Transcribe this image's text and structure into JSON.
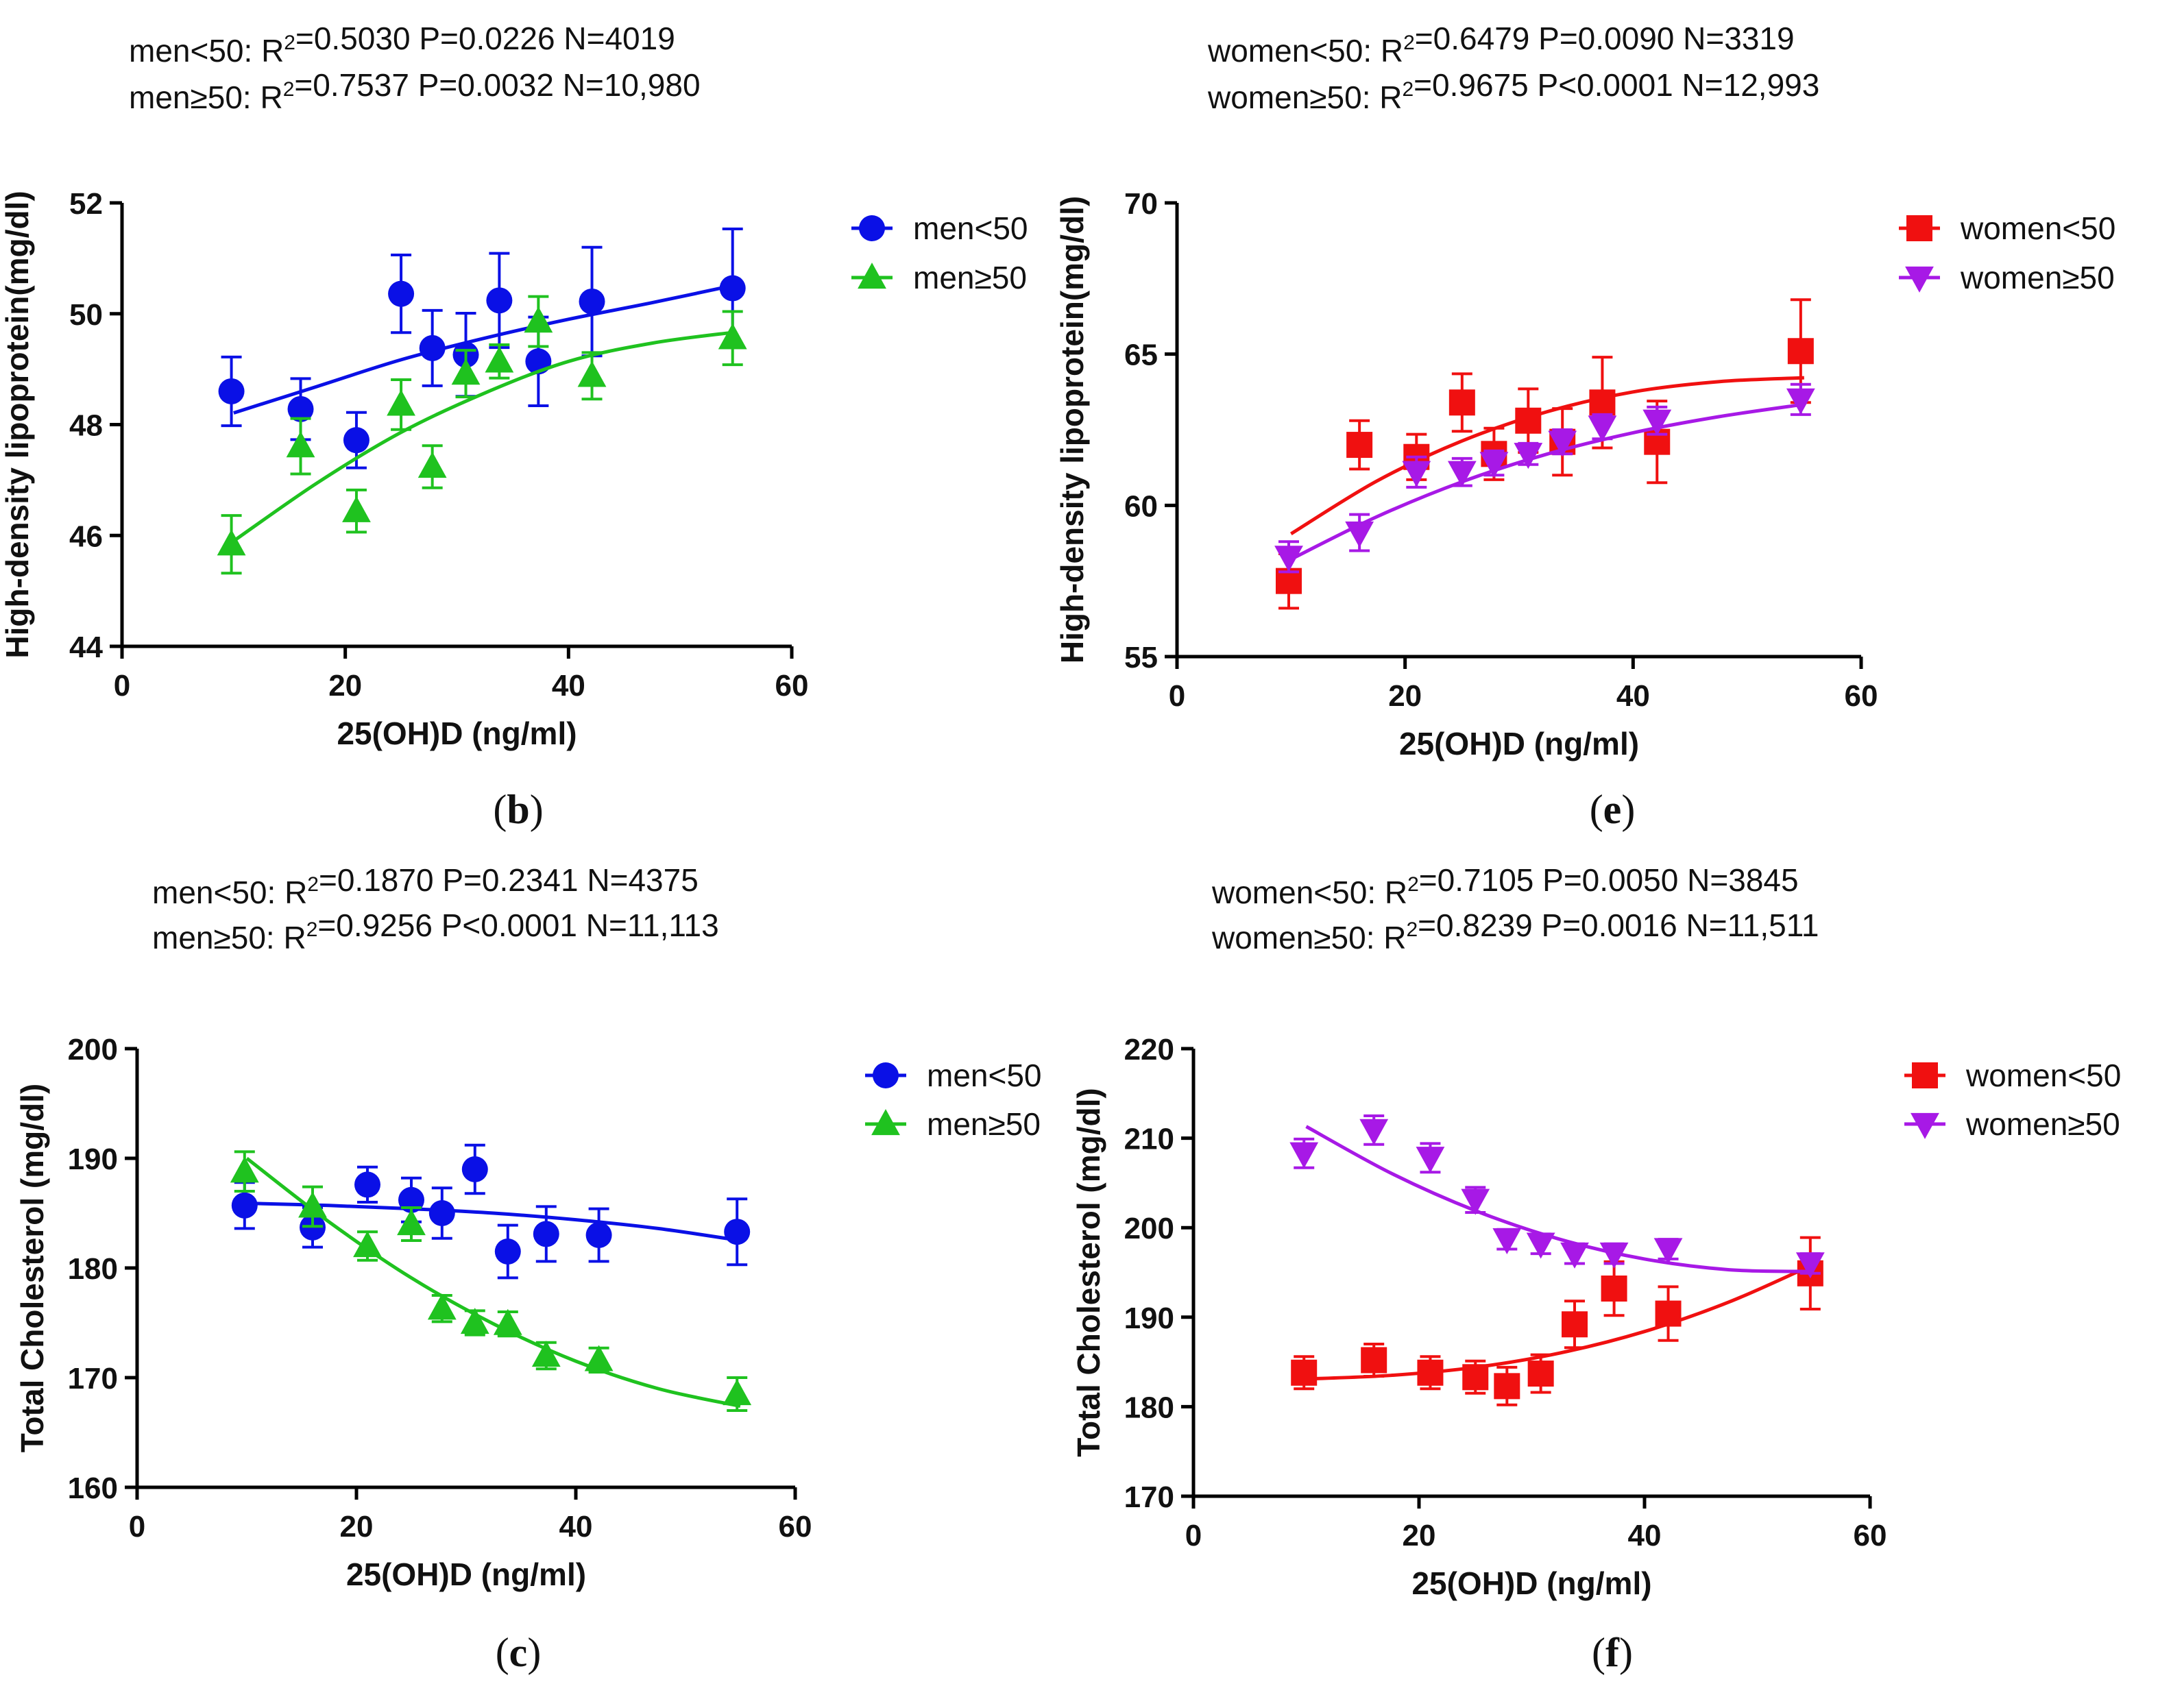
{
  "figure": {
    "panels": [
      {
        "label": "b",
        "stats": [
          {
            "group": "men<50",
            "r2": "0.5030",
            "p": "P=0.0226",
            "n": "N=4019"
          },
          {
            "group": "men≥50",
            "r2": "0.7537",
            "p": "P=0.0032",
            "n": "N=10,980"
          }
        ]
      },
      {
        "label": "e",
        "stats": [
          {
            "group": "women<50",
            "r2": "0.6479",
            "p": "P=0.0090",
            "n": "N=3319"
          },
          {
            "group": "women≥50",
            "r2": "0.9675",
            "p": "P<0.0001",
            "n": "N=12,993"
          }
        ]
      },
      {
        "label": "c",
        "stats": [
          {
            "group": "men<50",
            "r2": "0.1870",
            "p": "P=0.2341",
            "n": "N=4375"
          },
          {
            "group": "men≥50",
            "r2": "0.9256",
            "p": "P<0.0001",
            "n": "N=11,113"
          }
        ]
      },
      {
        "label": "f",
        "stats": [
          {
            "group": "women<50",
            "r2": "0.7105",
            "p": "P=0.0050",
            "n": "N=3845"
          },
          {
            "group": "women≥50",
            "r2": "0.8239",
            "p": "P=0.0016",
            "n": "N=11,511"
          }
        ]
      }
    ],
    "stat_prefix": "R",
    "stat_sup": "2",
    "colors": {
      "blue": "#0a10e6",
      "green": "#1fc21f",
      "red": "#f01010",
      "purple": "#a719e6"
    }
  },
  "chart_data": [
    {
      "type": "scatter",
      "xlabel": "25(OH)D (ng/ml)",
      "ylabel": "High-density lipoprotein(mg/dl)",
      "xlim": [
        0,
        60
      ],
      "ylim": [
        44,
        52
      ],
      "xticks": [
        0,
        20,
        40,
        60
      ],
      "yticks": [
        44,
        46,
        48,
        50,
        52
      ],
      "series": [
        {
          "name": "men<50",
          "marker": "circle",
          "color": "#0a10e6",
          "x": [
            9.8,
            16,
            21,
            25,
            27.8,
            30.8,
            33.8,
            37.3,
            42.1,
            54.7
          ],
          "y": [
            48.6,
            48.28,
            47.72,
            50.36,
            49.38,
            49.26,
            50.24,
            49.14,
            50.22,
            50.46
          ],
          "err": [
            0.62,
            0.55,
            0.5,
            0.7,
            0.68,
            0.75,
            0.85,
            0.8,
            0.98,
            1.07
          ],
          "fit": [
            48.21,
            48.69,
            49.17,
            49.56,
            49.9,
            50.2,
            50.52
          ]
        },
        {
          "name": "men≥50",
          "marker": "triangle-up",
          "color": "#1fc21f",
          "x": [
            9.8,
            16,
            21,
            25,
            27.8,
            30.8,
            33.8,
            37.3,
            42.1,
            54.7
          ],
          "y": [
            45.84,
            47.61,
            46.44,
            48.36,
            47.24,
            48.92,
            49.14,
            49.86,
            48.88,
            49.56
          ],
          "err": [
            0.52,
            0.5,
            0.38,
            0.45,
            0.38,
            0.42,
            0.3,
            0.45,
            0.42,
            0.48
          ],
          "fit": [
            45.9,
            46.95,
            47.86,
            48.57,
            49.14,
            49.47,
            49.67
          ]
        }
      ]
    },
    {
      "type": "scatter",
      "xlabel": "25(OH)D (ng/ml)",
      "ylabel": "High-density lipoprotein(mg/dl)",
      "xlim": [
        0,
        60
      ],
      "ylim": [
        55,
        70
      ],
      "xticks": [
        0,
        20,
        40,
        60
      ],
      "yticks": [
        55,
        60,
        65,
        70
      ],
      "series": [
        {
          "name": "women<50",
          "marker": "square",
          "color": "#f01010",
          "x": [
            9.8,
            16,
            21,
            25,
            27.8,
            30.8,
            33.8,
            37.3,
            42.1,
            54.7
          ],
          "y": [
            57.5,
            62,
            61.6,
            63.4,
            61.7,
            62.8,
            62.1,
            63.4,
            62.1,
            65.1
          ],
          "err": [
            0.9,
            0.8,
            0.75,
            0.95,
            0.85,
            1.05,
            1.1,
            1.5,
            1.35,
            1.7
          ],
          "fit": [
            59.06,
            60.8,
            62.13,
            63.1,
            63.75,
            64.09,
            64.22
          ]
        },
        {
          "name": "women≥50",
          "marker": "triangle-down",
          "color": "#a719e6",
          "x": [
            9.8,
            16,
            21,
            25,
            27.8,
            30.8,
            33.8,
            37.3,
            42.1,
            54.7
          ],
          "y": [
            58.3,
            59.1,
            61.1,
            61.1,
            61.4,
            61.7,
            62.1,
            62.6,
            62.8,
            63.5
          ],
          "err": [
            0.5,
            0.6,
            0.5,
            0.45,
            0.4,
            0.35,
            0.4,
            0.4,
            0.45,
            0.5
          ],
          "fit": [
            58.22,
            59.62,
            60.78,
            61.7,
            62.4,
            62.93,
            63.34
          ]
        }
      ]
    },
    {
      "type": "scatter",
      "xlabel": "25(OH)D (ng/ml)",
      "ylabel": "Total Cholesterol (mg/dl)",
      "xlim": [
        0,
        60
      ],
      "ylim": [
        160,
        200
      ],
      "xticks": [
        0,
        20,
        40,
        60
      ],
      "yticks": [
        160,
        170,
        180,
        190,
        200
      ],
      "series": [
        {
          "name": "men<50",
          "marker": "circle",
          "color": "#0a10e6",
          "x": [
            9.8,
            16,
            21,
            25,
            27.8,
            30.8,
            33.8,
            37.3,
            42.1,
            54.7
          ],
          "y": [
            185.7,
            183.7,
            187.6,
            186.2,
            185,
            189,
            181.5,
            183.1,
            183,
            183.3
          ],
          "err": [
            2.1,
            1.8,
            1.6,
            2,
            2.3,
            2.2,
            2.4,
            2.5,
            2.4,
            3
          ],
          "fit": [
            185.9,
            185.7,
            185.4,
            185,
            184.4,
            183.6,
            182.5
          ]
        },
        {
          "name": "men≥50",
          "marker": "triangle-up",
          "color": "#1fc21f",
          "x": [
            9.8,
            16,
            21,
            25,
            27.8,
            30.8,
            33.8,
            37.3,
            42.1,
            54.7
          ],
          "y": [
            188.8,
            185.6,
            182,
            184,
            176.3,
            175,
            174.9,
            172,
            171.6,
            168.5
          ],
          "err": [
            1.8,
            1.8,
            1.3,
            1.5,
            1.2,
            1.1,
            1.1,
            1.2,
            1.1,
            1.5
          ],
          "fit": [
            190,
            184.2,
            179.1,
            174.9,
            171.5,
            169,
            167.4
          ]
        }
      ]
    },
    {
      "type": "scatter",
      "xlabel": "25(OH)D (ng/ml)",
      "ylabel": "Total Cholesterol (mg/dl)",
      "xlim": [
        0,
        60
      ],
      "ylim": [
        170,
        220
      ],
      "xticks": [
        0,
        20,
        40,
        60
      ],
      "yticks": [
        170,
        180,
        190,
        200,
        210,
        220
      ],
      "series": [
        {
          "name": "women<50",
          "marker": "square",
          "color": "#f01010",
          "x": [
            9.8,
            16,
            21,
            25,
            27.8,
            30.8,
            33.8,
            37.3,
            42.1,
            54.7
          ],
          "y": [
            183.8,
            185.2,
            183.8,
            183.3,
            182.3,
            183.7,
            189.2,
            193.2,
            190.4,
            194.9
          ],
          "err": [
            1.8,
            1.8,
            1.8,
            1.8,
            2.1,
            2.1,
            2.6,
            3,
            3,
            4
          ],
          "fit": [
            183.1,
            183.5,
            184.4,
            186,
            188.4,
            191.7,
            195.9
          ]
        },
        {
          "name": "women≥50",
          "marker": "triangle-down",
          "color": "#a719e6",
          "x": [
            9.8,
            16,
            21,
            25,
            27.8,
            30.8,
            33.8,
            37.3,
            42.1,
            54.7
          ],
          "y": [
            208.3,
            210.9,
            207.8,
            203.1,
            198.7,
            198.2,
            197.1,
            197.1,
            197.6,
            196
          ],
          "err": [
            1.6,
            1.6,
            1.6,
            1.4,
            1.1,
            1.1,
            1.1,
            1.1,
            1.1,
            1.1
          ],
          "fit": [
            211.3,
            206.1,
            201.9,
            198.7,
            196.5,
            195.3,
            195.1
          ]
        }
      ]
    }
  ]
}
